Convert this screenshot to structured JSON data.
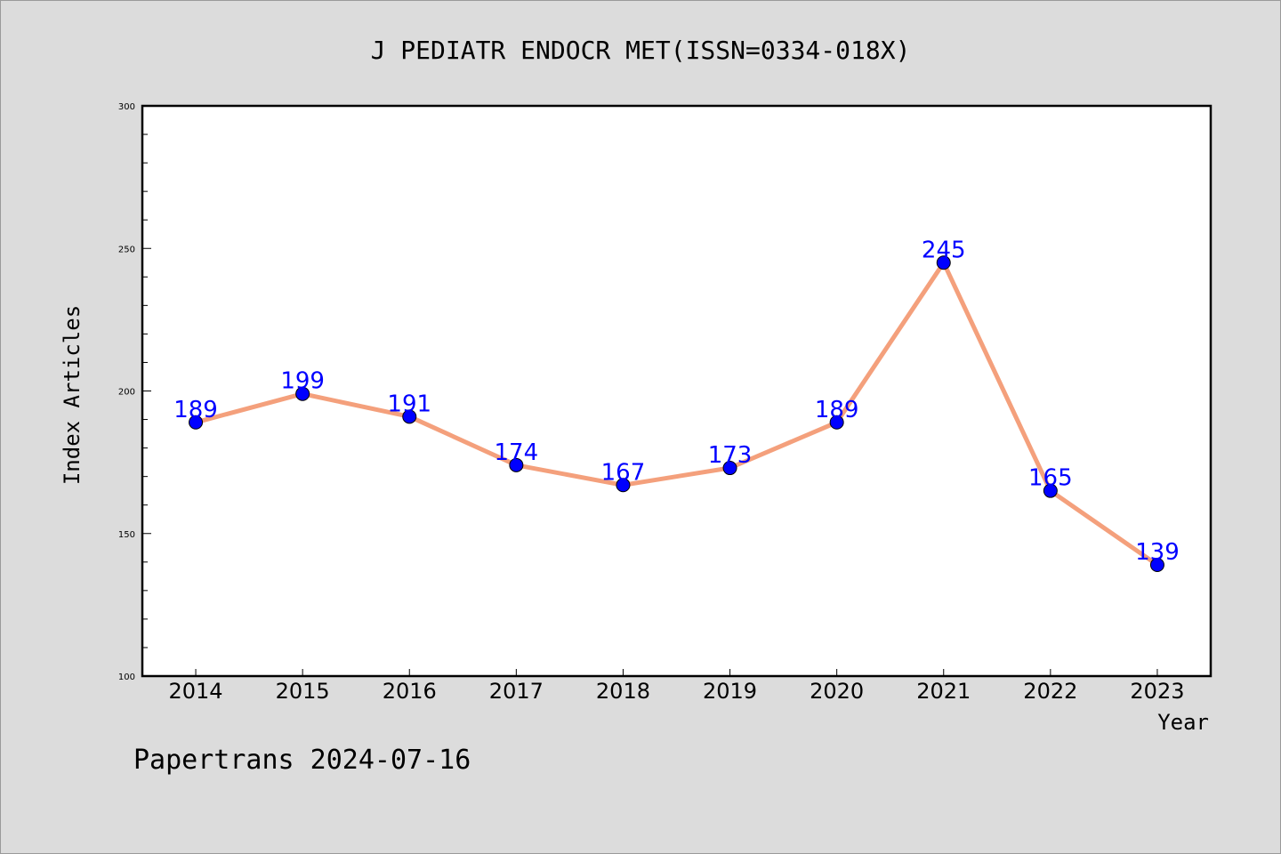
{
  "footer": "Papertrans 2024-07-16",
  "colors": {
    "background": "#dcdcdc",
    "plot_background": "#ffffff",
    "line": "#f4a07c",
    "marker": "#0000ff",
    "data_label": "#0000ff"
  },
  "chart_data": {
    "type": "line",
    "title": "J PEDIATR ENDOCR MET(ISSN=0334-018X)",
    "xlabel": "Year",
    "ylabel": "Index Articles",
    "categories": [
      "2014",
      "2015",
      "2016",
      "2017",
      "2018",
      "2019",
      "2020",
      "2021",
      "2022",
      "2023"
    ],
    "series": [
      {
        "values": [
          189,
          199,
          191,
          174,
          167,
          173,
          189,
          245,
          165,
          139
        ]
      }
    ],
    "ylim": [
      100,
      300
    ],
    "yticks": [
      "100",
      "150",
      "200",
      "250",
      "300"
    ],
    "grid": false,
    "legend": "none"
  }
}
